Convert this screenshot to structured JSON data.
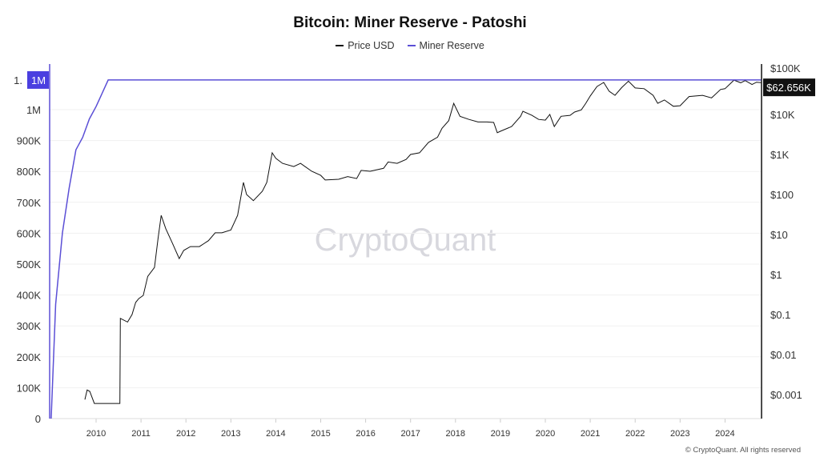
{
  "chart_data": {
    "type": "line",
    "title": "Bitcoin: Miner Reserve - Patoshi",
    "watermark": "CryptoQuant",
    "footer": "© CryptoQuant. All rights reserved",
    "legend_placement": "top-center",
    "grid": true,
    "x_ticks": [
      "2010",
      "2011",
      "2012",
      "2013",
      "2014",
      "2015",
      "2016",
      "2017",
      "2018",
      "2019",
      "2020",
      "2021",
      "2022",
      "2023",
      "2024"
    ],
    "x_range": [
      2009.0,
      2024.8
    ],
    "left_axis": {
      "ticks": [
        "0",
        "100K",
        "200K",
        "300K",
        "400K",
        "500K",
        "600K",
        "700K",
        "800K",
        "900K",
        "1M"
      ],
      "range": [
        0,
        1150000
      ],
      "current_label": "1.1M",
      "current_label_clipped": "1."
    },
    "right_axis": {
      "scale": "log",
      "ticks": [
        "$0.001",
        "$0.01",
        "$0.1",
        "$1",
        "$10",
        "$100",
        "$1K",
        "$10K",
        "$100K"
      ],
      "range": [
        0.0003,
        150000
      ],
      "current_label": "$62.656K"
    },
    "series": [
      {
        "name": "Price USD",
        "axis": "right",
        "color": "#111111",
        "points": [
          [
            2009.75,
            0.00075
          ],
          [
            2009.8,
            0.0013
          ],
          [
            2009.86,
            0.0012
          ],
          [
            2009.96,
            0.0006
          ],
          [
            2010.53,
            0.0006
          ],
          [
            2010.54,
            0.08
          ],
          [
            2010.7,
            0.065
          ],
          [
            2010.8,
            0.1
          ],
          [
            2010.88,
            0.2
          ],
          [
            2010.95,
            0.25
          ],
          [
            2011.05,
            0.3
          ],
          [
            2011.15,
            0.9
          ],
          [
            2011.3,
            1.5
          ],
          [
            2011.38,
            8
          ],
          [
            2011.45,
            30
          ],
          [
            2011.55,
            14
          ],
          [
            2011.7,
            6
          ],
          [
            2011.85,
            2.5
          ],
          [
            2011.95,
            4
          ],
          [
            2012.1,
            5
          ],
          [
            2012.3,
            5
          ],
          [
            2012.5,
            7
          ],
          [
            2012.65,
            11
          ],
          [
            2012.8,
            11
          ],
          [
            2013.0,
            13
          ],
          [
            2013.15,
            30
          ],
          [
            2013.28,
            200
          ],
          [
            2013.35,
            100
          ],
          [
            2013.5,
            70
          ],
          [
            2013.7,
            120
          ],
          [
            2013.8,
            200
          ],
          [
            2013.92,
            1100
          ],
          [
            2014.0,
            800
          ],
          [
            2014.15,
            600
          ],
          [
            2014.4,
            500
          ],
          [
            2014.55,
            600
          ],
          [
            2014.8,
            380
          ],
          [
            2015.0,
            300
          ],
          [
            2015.1,
            230
          ],
          [
            2015.4,
            240
          ],
          [
            2015.6,
            280
          ],
          [
            2015.8,
            250
          ],
          [
            2015.9,
            400
          ],
          [
            2016.1,
            380
          ],
          [
            2016.4,
            450
          ],
          [
            2016.5,
            650
          ],
          [
            2016.7,
            600
          ],
          [
            2016.9,
            750
          ],
          [
            2017.0,
            1000
          ],
          [
            2017.2,
            1100
          ],
          [
            2017.4,
            2000
          ],
          [
            2017.6,
            2700
          ],
          [
            2017.7,
            4500
          ],
          [
            2017.85,
            7000
          ],
          [
            2017.96,
            19000
          ],
          [
            2018.1,
            9000
          ],
          [
            2018.3,
            7500
          ],
          [
            2018.5,
            6500
          ],
          [
            2018.7,
            6500
          ],
          [
            2018.85,
            6300
          ],
          [
            2018.93,
            3500
          ],
          [
            2019.0,
            3800
          ],
          [
            2019.25,
            5000
          ],
          [
            2019.45,
            9000
          ],
          [
            2019.5,
            12000
          ],
          [
            2019.7,
            9500
          ],
          [
            2019.85,
            7500
          ],
          [
            2020.0,
            7200
          ],
          [
            2020.1,
            10000
          ],
          [
            2020.2,
            5000
          ],
          [
            2020.35,
            9000
          ],
          [
            2020.55,
            9500
          ],
          [
            2020.65,
            11500
          ],
          [
            2020.8,
            13000
          ],
          [
            2020.9,
            19000
          ],
          [
            2021.0,
            29000
          ],
          [
            2021.15,
            50000
          ],
          [
            2021.3,
            63000
          ],
          [
            2021.42,
            38000
          ],
          [
            2021.55,
            30000
          ],
          [
            2021.7,
            47000
          ],
          [
            2021.85,
            68000
          ],
          [
            2022.0,
            46000
          ],
          [
            2022.2,
            44000
          ],
          [
            2022.4,
            30000
          ],
          [
            2022.5,
            19000
          ],
          [
            2022.65,
            23000
          ],
          [
            2022.85,
            16000
          ],
          [
            2023.0,
            16500
          ],
          [
            2023.2,
            28000
          ],
          [
            2023.5,
            30000
          ],
          [
            2023.7,
            26000
          ],
          [
            2023.9,
            42000
          ],
          [
            2024.0,
            44000
          ],
          [
            2024.2,
            72000
          ],
          [
            2024.35,
            62000
          ],
          [
            2024.45,
            70000
          ],
          [
            2024.6,
            56000
          ],
          [
            2024.7,
            64000
          ],
          [
            2024.8,
            62656
          ]
        ]
      },
      {
        "name": "Miner Reserve",
        "axis": "left",
        "color": "#5b4fd6",
        "points": [
          [
            2009.0,
            0
          ],
          [
            2009.1,
            370000
          ],
          [
            2009.25,
            600000
          ],
          [
            2009.4,
            745000
          ],
          [
            2009.55,
            870000
          ],
          [
            2009.7,
            910000
          ],
          [
            2009.85,
            970000
          ],
          [
            2010.0,
            1010000
          ],
          [
            2010.27,
            1096000
          ],
          [
            2024.8,
            1096000
          ]
        ]
      }
    ]
  }
}
